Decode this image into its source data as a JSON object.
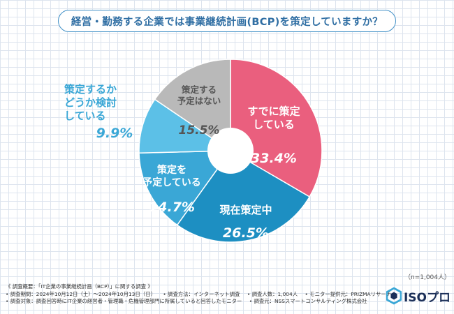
{
  "title": "経営・勤務する企業では事業継続計画(BCP)を策定していますか？",
  "chart_data": {
    "type": "pie",
    "variant": "donut",
    "title": "経営・勤務する企業では事業継続計画(BCP)を策定していますか？",
    "slices": [
      {
        "label": "すでに策定している",
        "label_lines": [
          "すでに策定",
          "している"
        ],
        "value": 33.4,
        "value_label": "33.4%",
        "color": "#ea5f7e"
      },
      {
        "label": "現在策定中",
        "label_lines": [
          "現在策定中"
        ],
        "value": 26.5,
        "value_label": "26.5%",
        "color": "#1d8fc2"
      },
      {
        "label": "策定を予定している",
        "label_lines": [
          "策定を",
          "予定している"
        ],
        "value": 14.7,
        "value_label": "14.7%",
        "color": "#3aa7d6"
      },
      {
        "label": "策定するかどうか検討している",
        "label_lines": [
          "策定するか",
          "どうか検討",
          "している"
        ],
        "value": 9.9,
        "value_label": "9.9%",
        "color": "#5cc0e7"
      },
      {
        "label": "策定する予定はない",
        "label_lines": [
          "策定する",
          "予定はない"
        ],
        "value": 15.5,
        "value_label": "15.5%",
        "color": "#b9b9b9"
      }
    ],
    "sample_size": "（n=1,004人）"
  },
  "footer": {
    "line1": "《 調査概要：「IT企業の事業継続計画（BCP）」に関する調査 》",
    "line2a": "• 調査期間：2024年10月12日（土）～2024年10月13日（日）",
    "line2b": "• 調査方法：インターネット調査",
    "line2c": "• 調査人数：1,004人",
    "line2d": "• モニター提供元：PRIZMAリサーチ",
    "line3a": "• 調査対象：調査回答時にIT企業の経営者・管理職・危機管理部門に所属していると回答したモニター",
    "line3b": "• 調査元：NSSスマートコンサルティング株式会社"
  },
  "logo": {
    "text": "ISOプロ",
    "color": "#1b2f58",
    "icon": "hexagon-logo-icon"
  }
}
